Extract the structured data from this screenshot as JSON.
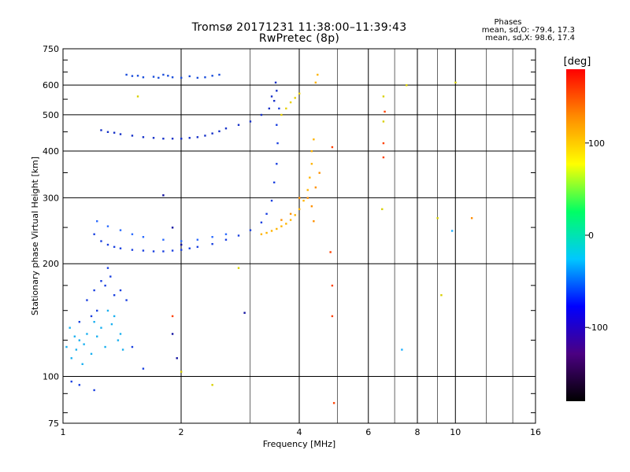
{
  "chart_data": {
    "type": "scatter",
    "title": "Tromsø 20171231 11:38:00–11:39:43",
    "subtitle": "RwPretec (8p)",
    "xlabel": "Frequency [MHz]",
    "ylabel": "Stationary phase Virtual Height [km]",
    "x_scale": "log",
    "y_scale": "log",
    "xlim": [
      1,
      16
    ],
    "ylim": [
      75,
      750
    ],
    "x_ticks": [
      1,
      2,
      4,
      6,
      8,
      10,
      16
    ],
    "x_tick_labels": [
      "1",
      "2",
      "4",
      "6",
      "8",
      "10",
      "16"
    ],
    "y_ticks": [
      75,
      100,
      200,
      300,
      400,
      500,
      600,
      750
    ],
    "y_tick_labels": [
      "75",
      "100",
      "200",
      "300",
      "400",
      "500",
      "600",
      "750"
    ],
    "grid": true,
    "stats": {
      "heading": "Phases",
      "o_line": "mean, sd,O: -79.4, 17.3",
      "x_line": "mean, sd,X:  98.6, 17.4"
    },
    "colorbar": {
      "label": "[deg]",
      "range": [
        -180,
        180
      ],
      "ticks": [
        100,
        0,
        -100
      ],
      "tick_labels": [
        "100",
        "0",
        "-100"
      ],
      "colors": [
        "#000000",
        "#4b0082",
        "#0000ff",
        "#00c8ff",
        "#00ff64",
        "#ffff00",
        "#ff8c00",
        "#ff0000"
      ]
    },
    "series": [
      {
        "phase": -95,
        "color": "#1a4ddb",
        "points": [
          [
            1.45,
            640
          ],
          [
            1.5,
            635
          ],
          [
            1.55,
            636
          ],
          [
            1.6,
            630
          ],
          [
            1.7,
            632
          ],
          [
            1.75,
            628
          ],
          [
            1.8,
            640
          ],
          [
            1.85,
            636
          ],
          [
            1.9,
            630
          ],
          [
            2.0,
            628
          ],
          [
            2.1,
            634
          ],
          [
            2.2,
            628
          ],
          [
            2.3,
            630
          ],
          [
            2.4,
            636
          ],
          [
            2.5,
            640
          ]
        ]
      },
      {
        "phase": -110,
        "color": "#1530c8",
        "points": [
          [
            1.25,
            455
          ],
          [
            1.3,
            450
          ],
          [
            1.35,
            448
          ],
          [
            1.4,
            444
          ],
          [
            1.5,
            440
          ],
          [
            1.6,
            436
          ],
          [
            1.7,
            434
          ],
          [
            1.8,
            432
          ],
          [
            1.9,
            432
          ],
          [
            2.0,
            432
          ],
          [
            2.1,
            434
          ],
          [
            2.2,
            436
          ],
          [
            2.3,
            440
          ],
          [
            2.4,
            446
          ],
          [
            2.5,
            452
          ],
          [
            2.6,
            460
          ],
          [
            2.8,
            470
          ],
          [
            3.0,
            480
          ],
          [
            3.2,
            500
          ],
          [
            3.35,
            520
          ],
          [
            3.45,
            545
          ],
          [
            3.5,
            580
          ],
          [
            3.48,
            610
          ],
          [
            3.4,
            560
          ]
        ]
      },
      {
        "phase": -115,
        "color": "#1a40e0",
        "points": [
          [
            1.2,
            240
          ],
          [
            1.25,
            230
          ],
          [
            1.3,
            225
          ],
          [
            1.35,
            222
          ],
          [
            1.4,
            220
          ],
          [
            1.5,
            218
          ],
          [
            1.6,
            217
          ],
          [
            1.7,
            216
          ],
          [
            1.8,
            216
          ],
          [
            1.9,
            217
          ],
          [
            2.0,
            218
          ],
          [
            2.1,
            220
          ],
          [
            2.2,
            222
          ],
          [
            2.4,
            226
          ],
          [
            2.6,
            232
          ],
          [
            2.8,
            238
          ],
          [
            3.0,
            246
          ],
          [
            3.2,
            258
          ],
          [
            3.3,
            272
          ],
          [
            3.4,
            295
          ],
          [
            3.45,
            330
          ],
          [
            3.5,
            370
          ],
          [
            3.52,
            420
          ],
          [
            3.5,
            470
          ],
          [
            3.55,
            520
          ]
        ]
      },
      {
        "phase": -85,
        "color": "#2b6bff",
        "points": [
          [
            1.22,
            260
          ],
          [
            1.3,
            252
          ],
          [
            1.4,
            246
          ],
          [
            1.5,
            240
          ],
          [
            1.6,
            236
          ],
          [
            1.8,
            232
          ],
          [
            2.0,
            230
          ],
          [
            2.2,
            232
          ],
          [
            2.4,
            236
          ],
          [
            2.6,
            240
          ]
        ]
      },
      {
        "phase": -60,
        "color": "#19b0f0",
        "points": [
          [
            1.02,
            120
          ],
          [
            1.05,
            112
          ],
          [
            1.08,
            118
          ],
          [
            1.1,
            125
          ],
          [
            1.12,
            108
          ],
          [
            1.15,
            130
          ],
          [
            1.18,
            115
          ],
          [
            1.2,
            140
          ],
          [
            1.25,
            135
          ],
          [
            1.3,
            150
          ],
          [
            1.35,
            145
          ],
          [
            1.4,
            130
          ],
          [
            1.04,
            135
          ],
          [
            1.07,
            128
          ],
          [
            1.13,
            122
          ],
          [
            1.22,
            128
          ],
          [
            1.28,
            120
          ],
          [
            1.33,
            138
          ],
          [
            1.38,
            125
          ],
          [
            1.42,
            118
          ]
        ]
      },
      {
        "phase": -100,
        "color": "#1a40e0",
        "points": [
          [
            1.15,
            160
          ],
          [
            1.2,
            170
          ],
          [
            1.25,
            180
          ],
          [
            1.3,
            195
          ],
          [
            1.28,
            175
          ],
          [
            1.35,
            165
          ],
          [
            1.32,
            185
          ],
          [
            1.22,
            150
          ],
          [
            1.18,
            145
          ],
          [
            1.1,
            140
          ],
          [
            1.4,
            170
          ],
          [
            1.45,
            160
          ],
          [
            1.5,
            120
          ],
          [
            1.6,
            105
          ],
          [
            1.1,
            95
          ],
          [
            1.2,
            92
          ],
          [
            1.05,
            97
          ]
        ]
      },
      {
        "phase": 95,
        "color": "#ffb400",
        "points": [
          [
            3.2,
            240
          ],
          [
            3.3,
            242
          ],
          [
            3.4,
            245
          ],
          [
            3.5,
            248
          ],
          [
            3.6,
            252
          ],
          [
            3.7,
            256
          ],
          [
            3.8,
            262
          ],
          [
            3.9,
            270
          ],
          [
            4.0,
            280
          ],
          [
            4.1,
            295
          ],
          [
            4.2,
            315
          ],
          [
            4.25,
            340
          ],
          [
            4.3,
            370
          ],
          [
            4.3,
            400
          ],
          [
            4.35,
            430
          ],
          [
            4.4,
            610
          ],
          [
            4.45,
            640
          ]
        ]
      },
      {
        "phase": 115,
        "color": "#ff9000",
        "points": [
          [
            3.6,
            262
          ],
          [
            3.8,
            272
          ],
          [
            4.0,
            300
          ],
          [
            4.2,
            300
          ],
          [
            4.3,
            285
          ],
          [
            4.4,
            320
          ],
          [
            4.5,
            350
          ],
          [
            4.35,
            260
          ]
        ]
      },
      {
        "phase": 85,
        "color": "#e8d000",
        "points": [
          [
            3.6,
            500
          ],
          [
            3.7,
            520
          ],
          [
            3.8,
            540
          ],
          [
            3.9,
            555
          ],
          [
            4.0,
            570
          ]
        ]
      },
      {
        "phase": 140,
        "color": "#ff4000",
        "points": [
          [
            6.55,
            420
          ],
          [
            6.6,
            510
          ],
          [
            4.85,
            410
          ],
          [
            4.8,
            215
          ],
          [
            4.85,
            175
          ],
          [
            4.85,
            145
          ],
          [
            4.9,
            85
          ],
          [
            1.9,
            145
          ],
          [
            6.55,
            385
          ]
        ]
      },
      {
        "phase": 90,
        "color": "#d8d000",
        "points": [
          [
            6.55,
            560
          ],
          [
            6.55,
            480
          ],
          [
            6.5,
            280
          ],
          [
            7.5,
            600
          ],
          [
            9.0,
            265
          ],
          [
            9.2,
            165
          ],
          [
            10.0,
            610
          ],
          [
            2.4,
            95
          ],
          [
            2.0,
            103
          ],
          [
            2.8,
            195
          ],
          [
            1.55,
            560
          ]
        ]
      },
      {
        "phase": 110,
        "color": "#ff8c00",
        "points": [
          [
            11.0,
            265
          ]
        ]
      },
      {
        "phase": -70,
        "color": "#1cb0ff",
        "points": [
          [
            9.8,
            245
          ],
          [
            7.3,
            118
          ]
        ]
      },
      {
        "phase": -130,
        "color": "#1010a0",
        "points": [
          [
            1.8,
            305
          ],
          [
            1.9,
            250
          ],
          [
            2.0,
            225
          ],
          [
            1.9,
            130
          ],
          [
            1.95,
            112
          ],
          [
            2.9,
            148
          ]
        ]
      }
    ]
  }
}
